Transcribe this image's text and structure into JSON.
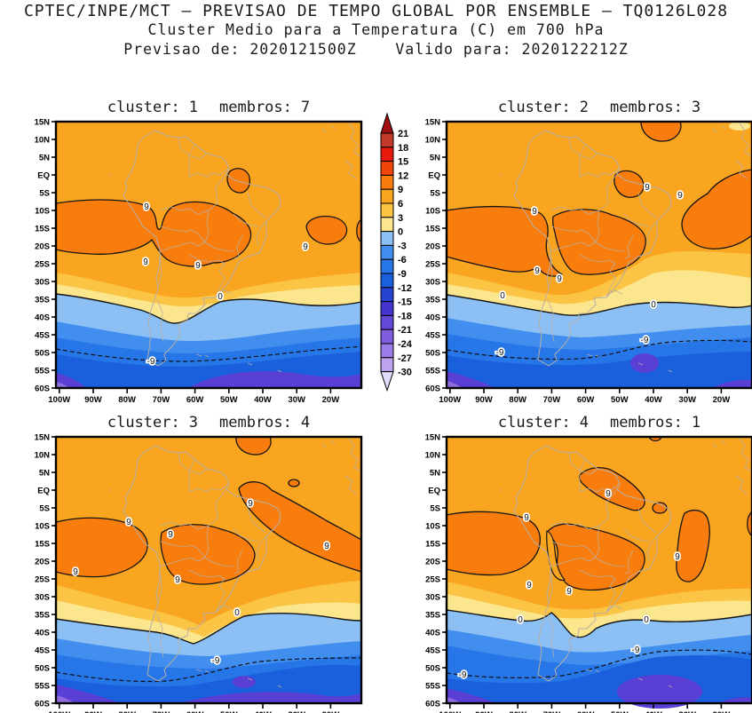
{
  "header": {
    "line1": "CPTEC/INPE/MCT – PREVISAO DE TEMPO GLOBAL POR ENSEMBLE – TQ0126L028",
    "line2": "Cluster Medio para a Temperatura (C) em 700 hPa",
    "line3": "Previsao de: 2020121500Z    Valido para: 2020122212Z"
  },
  "axes": {
    "lat_ticks": [
      "15N",
      "10N",
      "5N",
      "EQ",
      "5S",
      "10S",
      "15S",
      "20S",
      "25S",
      "30S",
      "35S",
      "40S",
      "45S",
      "50S",
      "55S",
      "60S"
    ],
    "lon_ticks": [
      "100W",
      "90W",
      "80W",
      "70W",
      "60W",
      "50W",
      "40W",
      "30W",
      "20W"
    ]
  },
  "colorbar": {
    "tick_labels": [
      "21",
      "18",
      "15",
      "12",
      "9",
      "6",
      "3",
      "0",
      "-3",
      "-6",
      "-9",
      "-12",
      "-15",
      "-18",
      "-21",
      "-24",
      "-27",
      "-30"
    ],
    "band_colors": [
      "#C23B2A",
      "#E6190B",
      "#F04508",
      "#F97D0C",
      "#FAA51F",
      "#FBC445",
      "#FBE68D",
      "#8CC0F4",
      "#418EEF",
      "#2776E8",
      "#1A5FDC",
      "#2743D2",
      "#4634CE",
      "#6347D6",
      "#7E5CDE",
      "#9B7BE7",
      "#BDA2F0"
    ],
    "arrow_top_color": "#A01010",
    "arrow_bottom_color": "#E3DCFA"
  },
  "panels": [
    {
      "label_cluster": "cluster:",
      "cluster_num": "1",
      "label_membros": "membros:",
      "membros_num": "7",
      "labels_nine": [
        "9",
        "9",
        "9",
        "9"
      ],
      "labels_zero": [
        "0"
      ],
      "labels_minus9": [
        "-9"
      ]
    },
    {
      "label_cluster": "cluster:",
      "cluster_num": "2",
      "label_membros": "membros:",
      "membros_num": "3",
      "labels_nine": [
        "9",
        "9",
        "9",
        "9",
        "9"
      ],
      "labels_zero": [
        "0",
        "0"
      ],
      "labels_minus9": [
        "-9",
        "-9"
      ]
    },
    {
      "label_cluster": "cluster:",
      "cluster_num": "3",
      "label_membros": "membros:",
      "membros_num": "4",
      "labels_nine": [
        "9",
        "9",
        "9",
        "9",
        "9",
        "9"
      ],
      "labels_zero": [
        "0"
      ],
      "labels_minus9": [
        "-9"
      ]
    },
    {
      "label_cluster": "cluster:",
      "cluster_num": "4",
      "label_membros": "membros:",
      "membros_num": "1",
      "labels_nine": [
        "9",
        "9",
        "9",
        "9",
        "9"
      ],
      "labels_zero": [
        "0",
        "0"
      ],
      "labels_minus9": [
        "-9",
        "-9"
      ]
    }
  ],
  "chart_data": {
    "type": "filled_contour_map",
    "title": "Cluster Medio para a Temperatura (C) em 700 hPa",
    "source_line": "CPTEC/INPE/MCT – PREVISAO DE TEMPO GLOBAL POR ENSEMBLE – TQ0126L028",
    "init_time": "2020121500Z",
    "valid_time": "2020122212Z",
    "variable": "Temperatura",
    "unit": "C",
    "level_hPa": 700,
    "region": {
      "area": "South America",
      "lon_range": [
        "100W",
        "20W"
      ],
      "lat_range": [
        "60S",
        "15N"
      ]
    },
    "contour_interval": 3,
    "levels": [
      21,
      18,
      15,
      12,
      9,
      6,
      3,
      0,
      -3,
      -6,
      -9,
      -12,
      -15,
      -18,
      -21,
      -24,
      -27,
      -30
    ],
    "colorbar_orientation": "vertical, centered between top panels, arrows at both ends",
    "panels": [
      {
        "cluster": 1,
        "membros": 7,
        "labeled_contours": [
          9,
          0,
          -9
        ],
        "notes": "warm >9C core over Paraguay/S Brazil and W of Andes; 0C line near 35S; dashed -9C near 52S; <-12C purple near 60S"
      },
      {
        "cluster": 2,
        "membros": 3,
        "labeled_contours": [
          9,
          0,
          -9
        ],
        "notes": ">9C also over tropical Atlantic E of 40W reaching top edge; 0C line near 34-37S; dashed -9C 46-52S"
      },
      {
        "cluster": 3,
        "membros": 4,
        "labeled_contours": [
          9,
          0,
          -9
        ],
        "notes": ">9C diagonal band toward SE Atlantic; 0C dips to ~40S near 62W; dashed -9C near 50S"
      },
      {
        "cluster": 4,
        "membros": 1,
        "labeled_contours": [
          9,
          0,
          -9
        ],
        "notes": "cold tongue along Andes pushes 0C north to ~33S; >9C meridional band near 20W; dashed -9C 46-55S"
      }
    ],
    "grid": false
  }
}
